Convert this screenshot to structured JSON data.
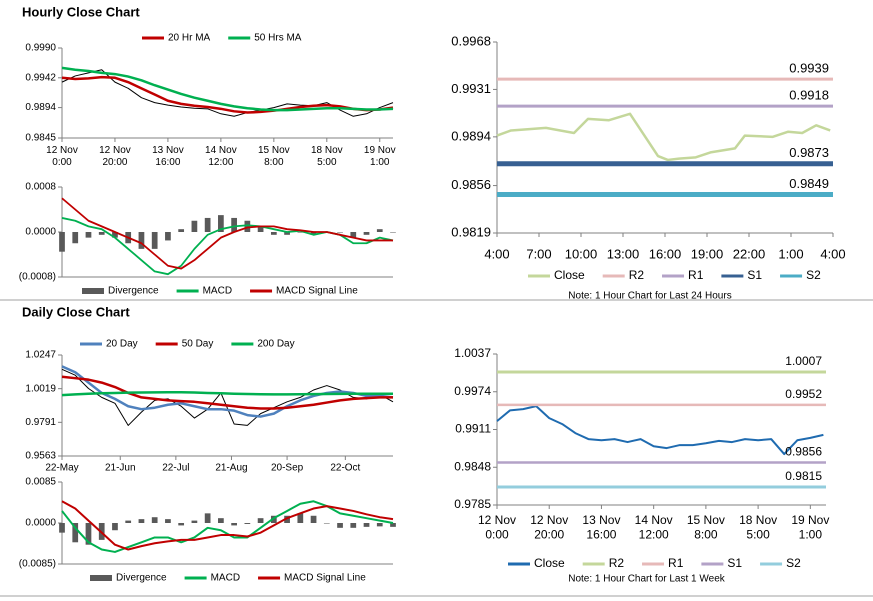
{
  "headings": [
    "Hourly Close Chart",
    "Daily Close Chart"
  ],
  "chart_data": [
    {
      "type": "line",
      "x": [
        0,
        5,
        10,
        15,
        20,
        25,
        30,
        35,
        40,
        45,
        50,
        55,
        60,
        65,
        70,
        75,
        80,
        85,
        90,
        95,
        100,
        105,
        110,
        115,
        120,
        125
      ],
      "xlim": [
        0,
        125
      ],
      "xticks": [
        {
          "value": 0,
          "label": "12 Nov\n0:00"
        },
        {
          "value": 20,
          "label": "12 Nov\n20:00"
        },
        {
          "value": 40,
          "label": "13 Nov\n16:00"
        },
        {
          "value": 60,
          "label": "14 Nov\n12:00"
        },
        {
          "value": 80,
          "label": "15 Nov\n8:00"
        },
        {
          "value": 100,
          "label": "18 Nov\n5:00"
        },
        {
          "value": 120,
          "label": "19 Nov\n1:00"
        }
      ],
      "ylim": [
        0.9845,
        0.999
      ],
      "yticks": [
        {
          "value": 0.999,
          "label": "0.9990"
        },
        0.9942,
        0.9894,
        0.9845
      ],
      "series": [
        {
          "color": "#000000",
          "width": 1,
          "values": [
            0.9935,
            0.9945,
            0.995,
            0.9955,
            0.9935,
            0.9925,
            0.991,
            0.9902,
            0.9898,
            0.9895,
            0.9893,
            0.9892,
            0.9884,
            0.988,
            0.9886,
            0.989,
            0.9894,
            0.99,
            0.9898,
            0.9897,
            0.9902,
            0.989,
            0.988,
            0.9884,
            0.9894,
            0.9902
          ]
        },
        {
          "name": "20 Hr MA",
          "color": "#c00000",
          "width": 2.5,
          "values": [
            0.9942,
            0.994,
            0.9941,
            0.9943,
            0.9942,
            0.9935,
            0.9925,
            0.9915,
            0.9905,
            0.99,
            0.9897,
            0.9895,
            0.9892,
            0.9888,
            0.9886,
            0.9887,
            0.9889,
            0.9892,
            0.9895,
            0.9897,
            0.9898,
            0.9896,
            0.9892,
            0.989,
            0.9891,
            0.9894
          ]
        },
        {
          "name": "50 Hrs MA",
          "color": "#00b050",
          "width": 2.5,
          "values": [
            0.9958,
            0.9955,
            0.9953,
            0.995,
            0.9948,
            0.9944,
            0.9938,
            0.993,
            0.9923,
            0.9916,
            0.991,
            0.9905,
            0.99,
            0.9896,
            0.9893,
            0.9891,
            0.989,
            0.989,
            0.9891,
            0.9892,
            0.9893,
            0.9893,
            0.9892,
            0.9891,
            0.9891,
            0.9892
          ]
        }
      ]
    },
    {
      "type": "combo",
      "x": [
        0,
        5,
        10,
        15,
        20,
        25,
        30,
        35,
        40,
        45,
        50,
        55,
        60,
        65,
        70,
        75,
        80,
        85,
        90,
        95,
        100,
        105,
        110,
        115,
        120,
        125
      ],
      "xlim": [
        0,
        125
      ],
      "ylim": [
        -0.0008,
        0.0008
      ],
      "yticks": [
        0.0008,
        {
          "value": 0,
          "label": "0.0000"
        },
        {
          "value": -0.0008,
          "label": "(0.0008)"
        }
      ],
      "series": [
        {
          "name": "Divergence",
          "kind": "bar",
          "color": "#595959",
          "values": [
            -0.00035,
            -0.0002,
            -0.0001,
            -5e-05,
            -0.0001,
            -0.0002,
            -0.0003,
            -0.0003,
            -0.00015,
            5e-05,
            0.0002,
            0.00025,
            0.0003,
            0.00025,
            0.0002,
            0.0001,
            -5e-05,
            -5e-05,
            -1e-05,
            -5e-05,
            0,
            0,
            -0.0001,
            -5e-05,
            5e-05,
            0
          ]
        },
        {
          "name": "MACD",
          "color": "#00b050",
          "width": 1.8,
          "values": [
            0.00025,
            0.0002,
            0.0001,
            5e-05,
            -0.0001,
            -0.0003,
            -0.0005,
            -0.0007,
            -0.00075,
            -0.0006,
            -0.0003,
            -5e-05,
            5e-05,
            0.0001,
            0.00012,
            0.0001,
            5e-05,
            0,
            2e-05,
            -5e-05,
            0,
            -5e-05,
            -0.0002,
            -0.0002,
            -0.0001,
            -0.00015
          ]
        },
        {
          "name": "MACD Signal Line",
          "color": "#c00000",
          "width": 1.8,
          "values": [
            0.0006,
            0.0004,
            0.0002,
            0.0001,
            0,
            -0.0001,
            -0.0002,
            -0.0004,
            -0.0006,
            -0.00065,
            -0.0005,
            -0.0003,
            -0.0001,
            0,
            8e-05,
            0.0001,
            0.0001,
            5e-05,
            3e-05,
            0,
            0,
            -5e-05,
            -0.0001,
            -0.00015,
            -0.00015,
            -0.00015
          ]
        }
      ]
    },
    {
      "type": "line",
      "x": [
        0,
        1,
        3.5,
        5.5,
        6.5,
        8,
        9.5,
        11.5,
        12.2,
        13,
        14.2,
        15.3,
        17,
        17.7,
        19.7,
        20.8,
        21.8,
        22.8,
        23.8
      ],
      "xlim": [
        0,
        24
      ],
      "xticks": [
        {
          "value": 0,
          "label": "4:00"
        },
        {
          "value": 3,
          "label": "7:00"
        },
        {
          "value": 6,
          "label": "10:00"
        },
        {
          "value": 9,
          "label": "13:00"
        },
        {
          "value": 12,
          "label": "16:00"
        },
        {
          "value": 15,
          "label": "19:00"
        },
        {
          "value": 18,
          "label": "22:00"
        },
        {
          "value": 21,
          "label": "1:00"
        },
        {
          "value": 24,
          "label": "4:00"
        }
      ],
      "ylim": [
        0.9819,
        0.9968
      ],
      "yticks": [
        0.9968,
        0.9931,
        0.9894,
        0.9856,
        0.9819
      ],
      "note": "Note: 1 Hour Chart for Last 24 Hours",
      "series": [
        {
          "name": "Close",
          "color": "#c4d79b",
          "width": 2.5,
          "values": [
            0.9895,
            0.9899,
            0.9901,
            0.9897,
            0.9908,
            0.9907,
            0.9912,
            0.9879,
            0.9876,
            0.9877,
            0.9878,
            0.9882,
            0.9885,
            0.9895,
            0.9894,
            0.9898,
            0.9897,
            0.9903,
            0.9899
          ]
        },
        {
          "name": "R2",
          "color": "#e6b9b8",
          "width": 3,
          "value": 0.9939
        },
        {
          "name": "R1",
          "color": "#b3a2c7",
          "width": 3,
          "value": 0.9918
        },
        {
          "name": "S1",
          "color": "#376092",
          "width": 5,
          "value": 0.9873
        },
        {
          "name": "S2",
          "color": "#4bacc6",
          "width": 5,
          "value": 0.9849
        }
      ]
    },
    {
      "type": "line",
      "x": [
        0,
        5,
        10,
        15,
        20,
        25,
        30,
        35,
        40,
        45,
        50,
        55,
        60,
        65,
        70,
        75,
        80,
        85,
        90,
        95,
        100,
        105,
        110,
        115,
        120,
        125
      ],
      "xlim": [
        0,
        125
      ],
      "xticks": [
        {
          "value": 0,
          "label": "22-May"
        },
        {
          "value": 22,
          "label": "21-Jun"
        },
        {
          "value": 43,
          "label": "22-Jul"
        },
        {
          "value": 64,
          "label": "21-Aug"
        },
        {
          "value": 85,
          "label": "20-Sep"
        },
        {
          "value": 107,
          "label": "22-Oct"
        }
      ],
      "ylim": [
        0.9563,
        1.0247
      ],
      "yticks": [
        1.0247,
        1.0019,
        0.9791,
        0.9563
      ],
      "series": [
        {
          "color": "#000000",
          "width": 1,
          "values": [
            1.015,
            1.011,
            1.002,
            0.996,
            0.992,
            0.977,
            0.986,
            0.994,
            0.995,
            0.99,
            0.982,
            0.988,
            0.999,
            0.978,
            0.977,
            0.985,
            0.989,
            0.993,
            0.996,
            1.001,
            1.004,
            1.001,
            0.996,
            0.995,
            0.998,
            0.993
          ]
        },
        {
          "name": "20 Day",
          "color": "#4f81bd",
          "width": 2.5,
          "values": [
            1.017,
            1.013,
            1.006,
            0.999,
            0.995,
            0.99,
            0.988,
            0.989,
            0.991,
            0.992,
            0.99,
            0.988,
            0.988,
            0.987,
            0.984,
            0.983,
            0.985,
            0.99,
            0.994,
            0.997,
            0.999,
            1.0,
            0.999,
            0.997,
            0.997,
            0.996
          ]
        },
        {
          "name": "50 Day",
          "color": "#c00000",
          "width": 2.5,
          "values": [
            1.01,
            1.009,
            1.008,
            1.006,
            1.003,
            0.999,
            0.996,
            0.995,
            0.994,
            0.9935,
            0.993,
            0.992,
            0.991,
            0.99,
            0.989,
            0.9885,
            0.9885,
            0.989,
            0.99,
            0.991,
            0.9925,
            0.994,
            0.995,
            0.9955,
            0.996,
            0.996
          ]
        },
        {
          "name": "200 Day",
          "color": "#00b050",
          "width": 2.5,
          "values": [
            0.9975,
            0.998,
            0.9985,
            0.9988,
            0.999,
            0.9992,
            0.9993,
            0.9994,
            0.9995,
            0.9995,
            0.9993,
            0.999,
            0.9988,
            0.9985,
            0.9983,
            0.9981,
            0.998,
            0.998,
            0.9981,
            0.9982,
            0.9983,
            0.9984,
            0.9985,
            0.9985,
            0.9985,
            0.9985
          ]
        }
      ]
    },
    {
      "type": "combo",
      "x": [
        0,
        5,
        10,
        15,
        20,
        25,
        30,
        35,
        40,
        45,
        50,
        55,
        60,
        65,
        70,
        75,
        80,
        85,
        90,
        95,
        100,
        105,
        110,
        115,
        120,
        125
      ],
      "xlim": [
        0,
        125
      ],
      "ylim": [
        -0.0085,
        0.0085
      ],
      "yticks": [
        0.0085,
        {
          "value": 0,
          "label": "0.0000"
        },
        {
          "value": -0.0085,
          "label": "(0.0085)"
        }
      ],
      "series": [
        {
          "name": "Divergence",
          "kind": "bar",
          "color": "#595959",
          "values": [
            -0.002,
            -0.004,
            -0.0045,
            -0.0035,
            -0.0015,
            0.0005,
            0.0008,
            0.0012,
            0.0008,
            -0.0005,
            0.0005,
            0.002,
            0.001,
            -0.0005,
            -0.0002,
            0.001,
            0.0015,
            0.0015,
            0.002,
            0.0015,
            0,
            -0.001,
            -0.001,
            -0.0008,
            -0.0007,
            -0.0008
          ]
        },
        {
          "name": "MACD",
          "color": "#00b050",
          "width": 2,
          "values": [
            0.0025,
            -0.001,
            -0.004,
            -0.0055,
            -0.006,
            -0.005,
            -0.004,
            -0.003,
            -0.003,
            -0.004,
            -0.003,
            -0.001,
            -0.0015,
            -0.003,
            -0.003,
            -0.001,
            0.001,
            0.0025,
            0.004,
            0.0045,
            0.0035,
            0.002,
            0.0015,
            0.001,
            0.0005,
            0
          ]
        },
        {
          "name": "MACD Signal Line",
          "color": "#c00000",
          "width": 2,
          "values": [
            0.0045,
            0.003,
            0.0005,
            -0.002,
            -0.0045,
            -0.0055,
            -0.0048,
            -0.0042,
            -0.0038,
            -0.0035,
            -0.0035,
            -0.003,
            -0.0025,
            -0.0025,
            -0.0028,
            -0.002,
            -0.0005,
            0.001,
            0.002,
            0.003,
            0.0035,
            0.003,
            0.0025,
            0.0018,
            0.0012,
            0.0008
          ]
        }
      ]
    },
    {
      "type": "line",
      "x": [
        0,
        5,
        10,
        15,
        20,
        25,
        30,
        35,
        40,
        45,
        50,
        55,
        60,
        65,
        70,
        75,
        80,
        85,
        90,
        95,
        100,
        105,
        110,
        115,
        120,
        125
      ],
      "xlim": [
        0,
        126
      ],
      "xticks": [
        {
          "value": 0,
          "label": "12 Nov\n0:00"
        },
        {
          "value": 20,
          "label": "12 Nov\n20:00"
        },
        {
          "value": 40,
          "label": "13 Nov\n16:00"
        },
        {
          "value": 60,
          "label": "14 Nov\n12:00"
        },
        {
          "value": 80,
          "label": "15 Nov\n8:00"
        },
        {
          "value": 100,
          "label": "18 Nov\n5:00"
        },
        {
          "value": 120,
          "label": "19 Nov\n1:00"
        }
      ],
      "ylim": [
        0.9785,
        1.0037
      ],
      "yticks": [
        1.0037,
        0.9974,
        0.9911,
        0.9848,
        0.9785
      ],
      "note": "Note: 1 Hour Chart for Last 1 Week",
      "series": [
        {
          "name": "Close",
          "color": "#1f6bb0",
          "width": 2,
          "values": [
            0.9925,
            0.9943,
            0.9945,
            0.995,
            0.993,
            0.992,
            0.9905,
            0.9895,
            0.9893,
            0.9895,
            0.989,
            0.9895,
            0.9883,
            0.988,
            0.9885,
            0.9885,
            0.9888,
            0.9892,
            0.989,
            0.9895,
            0.9893,
            0.9895,
            0.987,
            0.9893,
            0.9897,
            0.9902
          ]
        },
        {
          "name": "R2",
          "color": "#c4d79b",
          "width": 3,
          "value": 1.0007
        },
        {
          "name": "R1",
          "color": "#e6b9b8",
          "width": 2.5,
          "value": 0.9952
        },
        {
          "name": "S1",
          "color": "#b3a2c7",
          "width": 2.5,
          "value": 0.9856
        },
        {
          "name": "S2",
          "color": "#93cddd",
          "width": 3,
          "value": 0.9815
        }
      ]
    }
  ]
}
